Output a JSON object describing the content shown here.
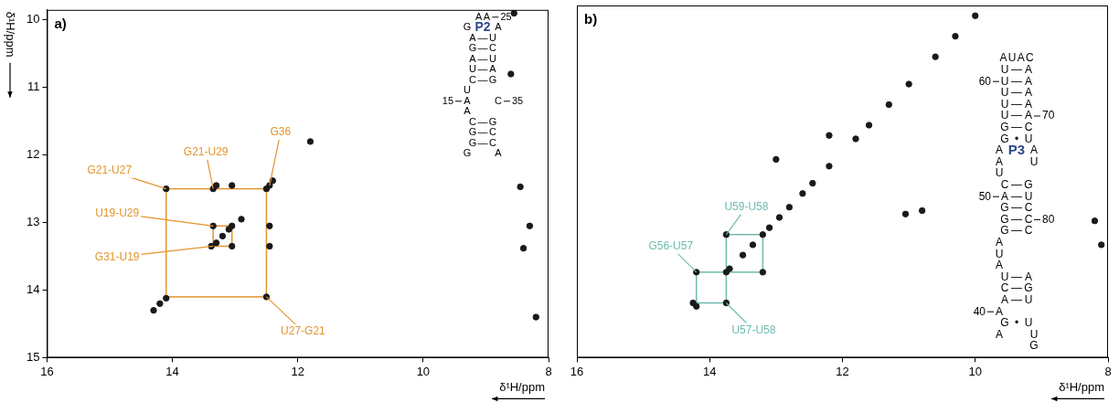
{
  "chart_data": [
    {
      "type": "scatter",
      "panel_label": "a)",
      "x_label": "δ¹H/ppm",
      "y_label": "δ¹H/ppm",
      "xlim": [
        16,
        8
      ],
      "ylim": [
        15,
        9.85
      ],
      "xticks": [
        16,
        14,
        12,
        10,
        8
      ],
      "yticks": [
        10,
        11,
        12,
        13,
        14,
        15
      ],
      "grid": false,
      "x": [
        14.3,
        14.2,
        14.1,
        13.38,
        13.3,
        13.2,
        13.1,
        13.05,
        12.9,
        12.5,
        12.45,
        12.4,
        11.8,
        14.1,
        12.5,
        13.35,
        13.35,
        13.05,
        13.3,
        13.05,
        12.45,
        12.45,
        8.45,
        8.4,
        8.3,
        8.55,
        8.6,
        8.2
      ],
      "values": [
        14.3,
        14.2,
        14.12,
        13.35,
        13.3,
        13.2,
        13.1,
        13.05,
        12.95,
        12.5,
        12.45,
        12.38,
        11.8,
        12.5,
        14.1,
        12.5,
        13.05,
        13.35,
        12.45,
        12.45,
        13.05,
        13.35,
        12.47,
        13.38,
        13.05,
        9.9,
        10.8,
        14.4
      ],
      "color": "#1a1a1a",
      "marker": "circle",
      "annotations": {
        "color": "#e3952e",
        "labels": [
          {
            "text": "G21-U27",
            "x": 14.1,
            "y": 12.5
          },
          {
            "text": "G21-U29",
            "x": 13.35,
            "y": 12.5
          },
          {
            "text": "G36",
            "x": 12.45,
            "y": 12.45
          },
          {
            "text": "U19-U29",
            "x": 13.35,
            "y": 13.05
          },
          {
            "text": "G31-U19",
            "x": 13.35,
            "y": 13.35
          },
          {
            "text": "U27-G21",
            "x": 12.5,
            "y": 14.1
          }
        ],
        "boxes": [
          [
            14.1,
            12.5,
            12.5,
            14.1
          ],
          [
            13.35,
            13.05,
            13.05,
            13.35
          ]
        ]
      },
      "structure": {
        "name": "P2",
        "color": "#2e4a8c",
        "rows": [
          {
            "loop": [
              "A",
              "A"
            ],
            "label_right": "25"
          },
          {
            "left": "G",
            "right": "A"
          },
          {
            "left": "A",
            "bond": "—",
            "right": "U"
          },
          {
            "left": "G",
            "bond": "—",
            "right": "C"
          },
          {
            "left": "A",
            "bond": "—",
            "right": "U"
          },
          {
            "left": "U",
            "bond": "—",
            "right": "A"
          },
          {
            "left": "C",
            "bond": "—",
            "right": "G"
          },
          {
            "left": "U"
          },
          {
            "left": "A",
            "right": "C",
            "label_left": "15",
            "label_right": "35"
          },
          {
            "left": "A"
          },
          {
            "left": "C",
            "bond": "—",
            "right": "G"
          },
          {
            "left": "G",
            "bond": "—",
            "right": "C"
          },
          {
            "left": "G",
            "bond": "—",
            "right": "C"
          },
          {
            "left": "G",
            "right": "A"
          }
        ]
      }
    },
    {
      "type": "scatter",
      "panel_label": "b)",
      "x_label": "δ¹H/ppm",
      "xlim": [
        16,
        8
      ],
      "ylim": [
        15,
        9.85
      ],
      "xticks": [
        16,
        14,
        12,
        10,
        8
      ],
      "tick_labels": "x",
      "grid": false,
      "x": [
        14.25,
        14.2,
        13.75,
        13.7,
        13.5,
        13.35,
        13.2,
        13.1,
        12.95,
        12.8,
        12.6,
        12.45,
        12.2,
        11.8,
        11.6,
        11.3,
        11.0,
        10.6,
        10.3,
        10.0,
        14.2,
        13.75,
        13.75,
        13.2,
        11.05,
        10.8,
        13.0,
        12.2,
        8.1,
        8.2
      ],
      "values": [
        14.2,
        14.25,
        13.75,
        13.7,
        13.5,
        13.35,
        13.2,
        13.1,
        12.95,
        12.8,
        12.6,
        12.45,
        12.2,
        11.8,
        11.6,
        11.3,
        11.0,
        10.6,
        10.3,
        10.0,
        13.75,
        14.2,
        13.2,
        13.75,
        12.9,
        12.85,
        12.1,
        11.75,
        13.35,
        13.0
      ],
      "color": "#1a1a1a",
      "marker": "circle",
      "annotations": {
        "color": "#6fbab1",
        "labels": [
          {
            "text": "G56-U57",
            "x": 14.2,
            "y": 13.75
          },
          {
            "text": "U59-U58",
            "x": 13.75,
            "y": 13.2
          },
          {
            "text": "U57-U58",
            "x": 13.75,
            "y": 14.2
          }
        ],
        "boxes": [
          [
            14.2,
            13.75,
            13.75,
            14.2
          ],
          [
            13.75,
            13.2,
            13.2,
            13.75
          ]
        ]
      },
      "structure": {
        "name": "P3",
        "color": "#2e4a8c",
        "rows": [
          {
            "loop": [
              "A",
              "U",
              "A",
              "C"
            ]
          },
          {
            "left": "U",
            "bond": "—",
            "right": "A"
          },
          {
            "left": "U",
            "bond": "—",
            "right": "A",
            "label_left": "60"
          },
          {
            "left": "U",
            "bond": "—",
            "right": "A"
          },
          {
            "left": "U",
            "bond": "—",
            "right": "A"
          },
          {
            "left": "U",
            "bond": "—",
            "right": "A",
            "label_right": "70"
          },
          {
            "left": "G",
            "bond": "—",
            "right": "C"
          },
          {
            "left": "G",
            "bond": "•",
            "right": "U"
          },
          {
            "left": "A",
            "right": "A"
          },
          {
            "left": "A",
            "right": "U"
          },
          {
            "left": "U"
          },
          {
            "left": "C",
            "bond": "—",
            "right": "G"
          },
          {
            "left": "A",
            "bond": "—",
            "right": "U",
            "label_left": "50"
          },
          {
            "left": "G",
            "bond": "—",
            "right": "C"
          },
          {
            "left": "G",
            "bond": "—",
            "right": "C",
            "label_right": "80"
          },
          {
            "left": "G",
            "bond": "—",
            "right": "C"
          },
          {
            "left": "A"
          },
          {
            "left": "U"
          },
          {
            "left": "A"
          },
          {
            "left": "U",
            "bond": "—",
            "right": "A"
          },
          {
            "left": "C",
            "bond": "—",
            "right": "G"
          },
          {
            "left": "A",
            "bond": "—",
            "right": "U"
          },
          {
            "left": "A",
            "label_left": "40"
          },
          {
            "left": "G",
            "bond": "•",
            "right": "U"
          },
          {
            "left": "A",
            "right": "U"
          },
          {
            "right": "G"
          }
        ]
      }
    }
  ]
}
